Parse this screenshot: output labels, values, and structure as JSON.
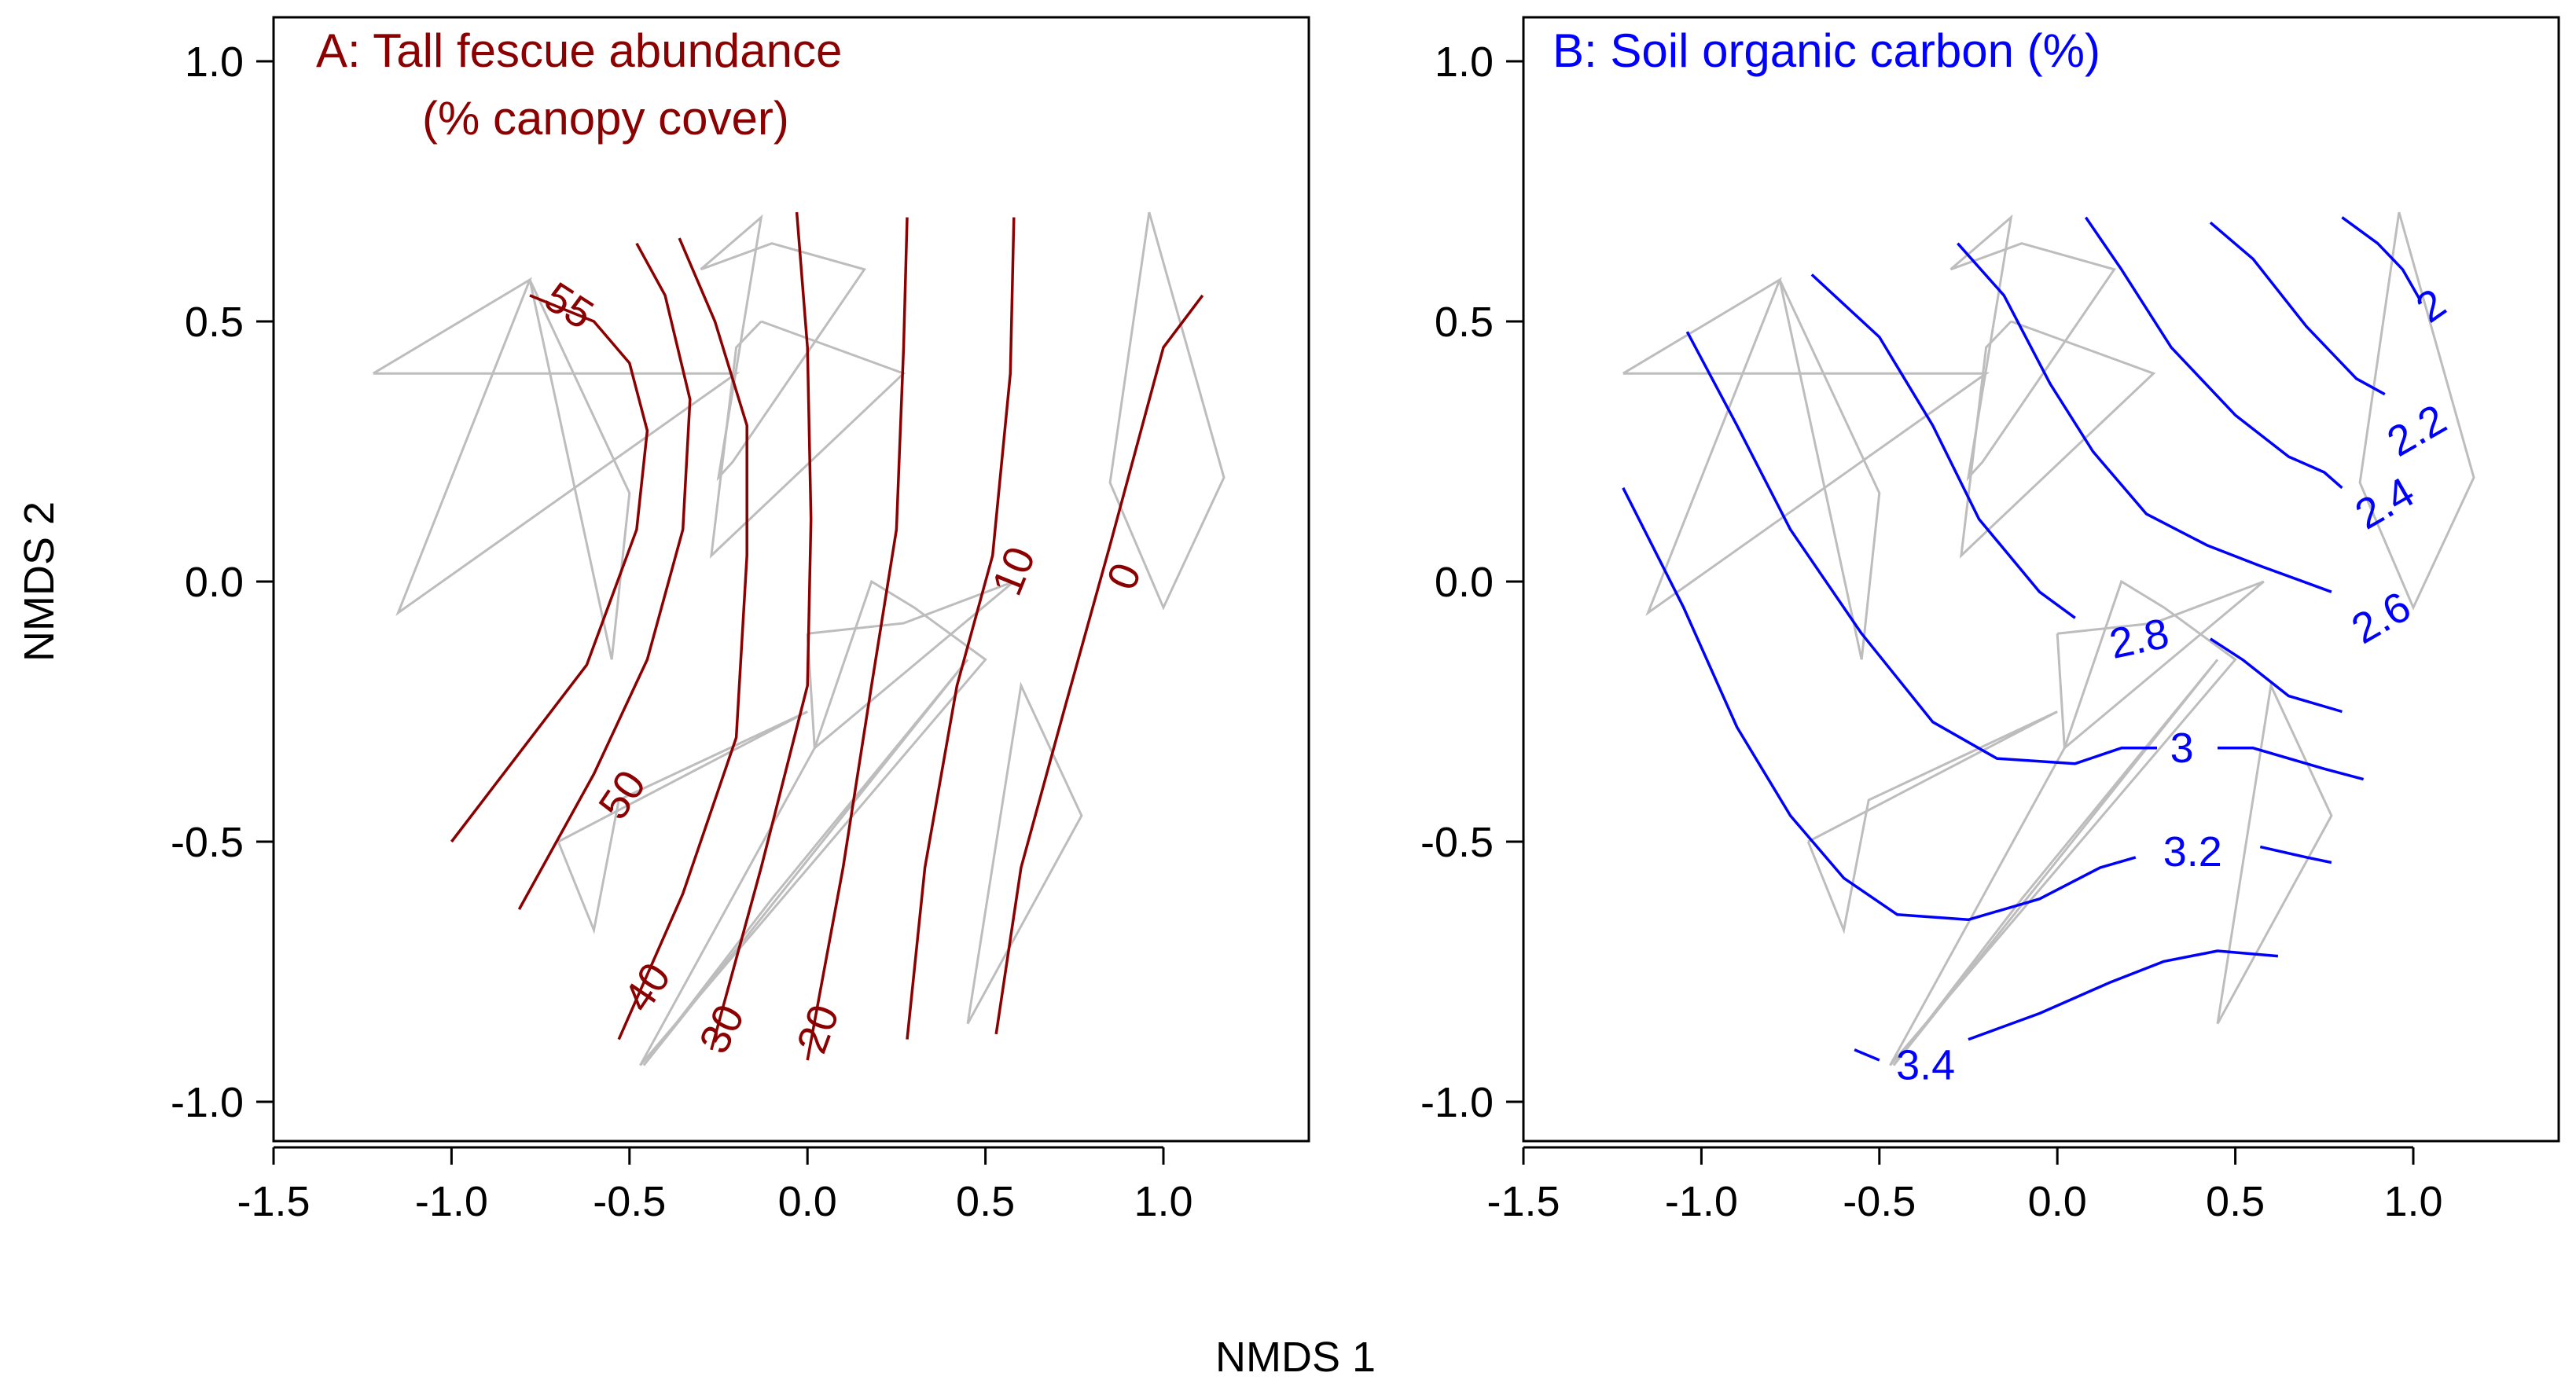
{
  "figure": {
    "shared_xlabel": "NMDS 1",
    "shared_ylabel": "NMDS 2"
  },
  "chart_data": [
    {
      "type": "contour",
      "title_lines": [
        "A: Tall fescue abundance",
        "(% canopy cover)"
      ],
      "title_color": "#8b0000",
      "xlabel": "NMDS 1",
      "ylabel": "NMDS 2",
      "xlim": [
        -1.5,
        1.4
      ],
      "ylim": [
        -1.1,
        1.07
      ],
      "xticks": [
        -1.5,
        -1.0,
        -0.5,
        0.0,
        0.5,
        1.0
      ],
      "xtick_labels": [
        "-1.5",
        "-1.0",
        "-0.5",
        "0.0",
        "0.5",
        "1.0"
      ],
      "yticks": [
        -1.0,
        -0.5,
        0.0,
        0.5,
        1.0
      ],
      "ytick_labels": [
        "-1.0",
        "-0.5",
        "0.0",
        "0.5",
        "1.0"
      ],
      "grid": false,
      "contour_color": "#8b0000",
      "hull_color": "#bdbdbd",
      "hulls": [
        [
          [
            -1.22,
            0.4
          ],
          [
            -0.78,
            0.58
          ],
          [
            -1.15,
            -0.06
          ],
          [
            -0.2,
            0.4
          ],
          [
            -1.22,
            0.4
          ]
        ],
        [
          [
            -0.55,
            -0.15
          ],
          [
            -0.5,
            0.17
          ],
          [
            -0.78,
            0.58
          ],
          [
            -0.55,
            -0.15
          ]
        ],
        [
          [
            -0.3,
            0.6
          ],
          [
            -0.1,
            0.65
          ],
          [
            0.16,
            0.6
          ],
          [
            -0.21,
            0.23
          ],
          [
            -0.25,
            0.2
          ],
          [
            -0.13,
            0.7
          ],
          [
            -0.3,
            0.6
          ]
        ],
        [
          [
            -0.13,
            0.5
          ],
          [
            -0.2,
            0.45
          ],
          [
            -0.27,
            0.05
          ],
          [
            0.27,
            0.4
          ],
          [
            -0.13,
            0.5
          ]
        ],
        [
          [
            0.96,
            0.71
          ],
          [
            0.85,
            0.19
          ],
          [
            1.0,
            -0.05
          ],
          [
            1.17,
            0.2
          ],
          [
            0.96,
            0.71
          ]
        ],
        [
          [
            -0.7,
            -0.5
          ],
          [
            -0.6,
            -0.67
          ],
          [
            -0.53,
            -0.42
          ],
          [
            0.0,
            -0.25
          ],
          [
            -0.7,
            -0.5
          ]
        ],
        [
          [
            -0.47,
            -0.93
          ],
          [
            0.02,
            -0.32
          ],
          [
            0.18,
            0.0
          ],
          [
            0.3,
            -0.05
          ],
          [
            0.5,
            -0.15
          ],
          [
            -0.47,
            -0.93
          ]
        ],
        [
          [
            0.0,
            -0.1
          ],
          [
            0.27,
            -0.08
          ],
          [
            0.58,
            0.0
          ],
          [
            0.02,
            -0.32
          ],
          [
            0.0,
            -0.1
          ]
        ],
        [
          [
            0.45,
            -0.85
          ],
          [
            0.6,
            -0.2
          ],
          [
            0.77,
            -0.45
          ],
          [
            0.45,
            -0.85
          ]
        ],
        [
          [
            -0.46,
            -0.93
          ],
          [
            -0.1,
            -0.61
          ],
          [
            0.45,
            -0.15
          ],
          [
            -0.46,
            -0.93
          ]
        ]
      ],
      "levels": [
        {
          "label": "55",
          "points": [
            [
              -1.0,
              -0.5
            ],
            [
              -0.62,
              -0.16
            ],
            [
              -0.48,
              0.1
            ],
            [
              -0.45,
              0.29
            ],
            [
              -0.5,
              0.42
            ],
            [
              -0.6,
              0.5
            ],
            [
              -0.78,
              0.55
            ]
          ],
          "label_at": [
            -0.67,
            0.53
          ],
          "label_rotation": 33
        },
        {
          "label": "50",
          "points": [
            [
              -0.81,
              -0.63
            ],
            [
              -0.6,
              -0.37
            ],
            [
              -0.45,
              -0.15
            ],
            [
              -0.35,
              0.1
            ],
            [
              -0.33,
              0.35
            ],
            [
              -0.4,
              0.55
            ],
            [
              -0.48,
              0.65
            ]
          ],
          "label_at": [
            -0.52,
            -0.41
          ],
          "label_rotation": -56
        },
        {
          "label": "40",
          "points": [
            [
              -0.53,
              -0.88
            ],
            [
              -0.35,
              -0.6
            ],
            [
              -0.2,
              -0.3
            ],
            [
              -0.17,
              0.05
            ],
            [
              -0.17,
              0.3
            ],
            [
              -0.26,
              0.5
            ],
            [
              -0.36,
              0.66
            ]
          ],
          "label_at": [
            -0.45,
            -0.78
          ],
          "label_rotation": -56
        },
        {
          "label": "30",
          "points": [
            [
              -0.27,
              -0.9
            ],
            [
              -0.13,
              -0.55
            ],
            [
              0.0,
              -0.2
            ],
            [
              0.01,
              0.12
            ],
            [
              0.0,
              0.45
            ],
            [
              -0.03,
              0.71
            ]
          ],
          "label_at": [
            -0.24,
            -0.86
          ],
          "label_rotation": -63
        },
        {
          "label": "20",
          "points": [
            [
              0.0,
              -0.92
            ],
            [
              0.1,
              -0.55
            ],
            [
              0.18,
              -0.2
            ],
            [
              0.25,
              0.1
            ],
            [
              0.27,
              0.45
            ],
            [
              0.28,
              0.7
            ]
          ],
          "label_at": [
            0.03,
            -0.86
          ],
          "label_rotation": -70
        },
        {
          "label": "10",
          "points": [
            [
              0.28,
              -0.88
            ],
            [
              0.33,
              -0.55
            ],
            [
              0.42,
              -0.2
            ],
            [
              0.52,
              0.05
            ],
            [
              0.57,
              0.4
            ],
            [
              0.58,
              0.7
            ]
          ],
          "label_at": [
            0.58,
            0.02
          ],
          "label_rotation": -68
        },
        {
          "label": "0",
          "points": [
            [
              0.53,
              -0.87
            ],
            [
              0.6,
              -0.55
            ],
            [
              0.72,
              -0.25
            ],
            [
              0.85,
              0.07
            ],
            [
              1.0,
              0.45
            ],
            [
              1.11,
              0.55
            ]
          ],
          "label_at": [
            0.89,
            0.01
          ],
          "label_rotation": -68
        }
      ]
    },
    {
      "type": "contour",
      "title_lines": [
        "B: Soil organic carbon (%)"
      ],
      "title_color": "#0000ff",
      "xlabel": "NMDS 1",
      "ylabel": "NMDS 2",
      "xlim": [
        -1.5,
        1.4
      ],
      "ylim": [
        -1.1,
        1.07
      ],
      "xticks": [
        -1.5,
        -1.0,
        -0.5,
        0.0,
        0.5,
        1.0
      ],
      "xtick_labels": [
        "-1.5",
        "-1.0",
        "-0.5",
        "0.0",
        "0.5",
        "1.0"
      ],
      "yticks": [
        -1.0,
        -0.5,
        0.0,
        0.5,
        1.0
      ],
      "ytick_labels": [
        "-1.0",
        "-0.5",
        "0.0",
        "0.5",
        "1.0"
      ],
      "grid": false,
      "contour_color": "#0000ff",
      "hull_color": "#bdbdbd",
      "hulls": [
        [
          [
            -1.22,
            0.4
          ],
          [
            -0.78,
            0.58
          ],
          [
            -1.15,
            -0.06
          ],
          [
            -0.2,
            0.4
          ],
          [
            -1.22,
            0.4
          ]
        ],
        [
          [
            -0.55,
            -0.15
          ],
          [
            -0.5,
            0.17
          ],
          [
            -0.78,
            0.58
          ],
          [
            -0.55,
            -0.15
          ]
        ],
        [
          [
            -0.3,
            0.6
          ],
          [
            -0.1,
            0.65
          ],
          [
            0.16,
            0.6
          ],
          [
            -0.21,
            0.23
          ],
          [
            -0.25,
            0.2
          ],
          [
            -0.13,
            0.7
          ],
          [
            -0.3,
            0.6
          ]
        ],
        [
          [
            -0.13,
            0.5
          ],
          [
            -0.2,
            0.45
          ],
          [
            -0.27,
            0.05
          ],
          [
            0.27,
            0.4
          ],
          [
            -0.13,
            0.5
          ]
        ],
        [
          [
            0.96,
            0.71
          ],
          [
            0.85,
            0.19
          ],
          [
            1.0,
            -0.05
          ],
          [
            1.17,
            0.2
          ],
          [
            0.96,
            0.71
          ]
        ],
        [
          [
            -0.7,
            -0.5
          ],
          [
            -0.6,
            -0.67
          ],
          [
            -0.53,
            -0.42
          ],
          [
            0.0,
            -0.25
          ],
          [
            -0.7,
            -0.5
          ]
        ],
        [
          [
            -0.47,
            -0.93
          ],
          [
            0.02,
            -0.32
          ],
          [
            0.18,
            0.0
          ],
          [
            0.3,
            -0.05
          ],
          [
            0.5,
            -0.15
          ],
          [
            -0.47,
            -0.93
          ]
        ],
        [
          [
            0.0,
            -0.1
          ],
          [
            0.27,
            -0.08
          ],
          [
            0.58,
            0.0
          ],
          [
            0.02,
            -0.32
          ],
          [
            0.0,
            -0.1
          ]
        ],
        [
          [
            0.45,
            -0.85
          ],
          [
            0.6,
            -0.2
          ],
          [
            0.77,
            -0.45
          ],
          [
            0.45,
            -0.85
          ]
        ],
        [
          [
            -0.46,
            -0.93
          ],
          [
            -0.1,
            -0.61
          ],
          [
            0.45,
            -0.15
          ],
          [
            -0.46,
            -0.93
          ]
        ]
      ],
      "levels": [
        {
          "label": "2",
          "points": [
            [
              0.8,
              0.7
            ],
            [
              0.9,
              0.65
            ],
            [
              0.97,
              0.6
            ],
            [
              1.02,
              0.54
            ]
          ],
          "label_at": [
            1.05,
            0.53
          ],
          "label_rotation": -35
        },
        {
          "label": "2.2",
          "points": [
            [
              0.43,
              0.69
            ],
            [
              0.55,
              0.62
            ],
            [
              0.7,
              0.49
            ],
            [
              0.84,
              0.39
            ],
            [
              0.92,
              0.36
            ]
          ],
          "label_at": [
            1.01,
            0.29
          ],
          "label_rotation": -30
        },
        {
          "label": "2.4",
          "points": [
            [
              0.08,
              0.7
            ],
            [
              0.18,
              0.6
            ],
            [
              0.32,
              0.45
            ],
            [
              0.5,
              0.32
            ],
            [
              0.65,
              0.24
            ],
            [
              0.75,
              0.21
            ],
            [
              0.8,
              0.18
            ]
          ],
          "label_at": [
            0.92,
            0.15
          ],
          "label_rotation": -30
        },
        {
          "label": "2.6",
          "points": [
            [
              -0.28,
              0.65
            ],
            [
              -0.15,
              0.55
            ],
            [
              -0.02,
              0.38
            ],
            [
              0.1,
              0.25
            ],
            [
              0.25,
              0.13
            ],
            [
              0.42,
              0.07
            ],
            [
              0.57,
              0.03
            ],
            [
              0.77,
              -0.02
            ]
          ],
          "label_at": [
            0.91,
            -0.07
          ],
          "label_rotation": -30
        },
        {
          "label": "2.8",
          "points": [
            [
              -0.69,
              0.59
            ],
            [
              -0.5,
              0.47
            ],
            [
              -0.35,
              0.3
            ],
            [
              -0.22,
              0.12
            ],
            [
              -0.05,
              -0.02
            ],
            [
              0.05,
              -0.07
            ]
          ],
          "label_at": [
            0.23,
            -0.11
          ],
          "label_rotation": -12
        },
        {
          "label": "2.8",
          "tail": true,
          "points": [
            [
              0.43,
              -0.11
            ],
            [
              0.52,
              -0.15
            ],
            [
              0.65,
              -0.22
            ],
            [
              0.8,
              -0.25
            ]
          ],
          "label_at": null
        },
        {
          "label": "3",
          "points": [
            [
              -1.04,
              0.48
            ],
            [
              -0.9,
              0.3
            ],
            [
              -0.75,
              0.1
            ],
            [
              -0.55,
              -0.1
            ],
            [
              -0.35,
              -0.27
            ],
            [
              -0.17,
              -0.34
            ],
            [
              0.05,
              -0.35
            ],
            [
              0.18,
              -0.32
            ],
            [
              0.28,
              -0.32
            ]
          ],
          "label_at": [
            0.35,
            -0.32
          ],
          "label_rotation": 0
        },
        {
          "label": "3",
          "tail": true,
          "points": [
            [
              0.45,
              -0.32
            ],
            [
              0.55,
              -0.32
            ],
            [
              0.75,
              -0.36
            ],
            [
              0.86,
              -0.38
            ]
          ],
          "label_at": null
        },
        {
          "label": "3.2",
          "points": [
            [
              -1.22,
              0.18
            ],
            [
              -1.05,
              -0.05
            ],
            [
              -0.9,
              -0.28
            ],
            [
              -0.75,
              -0.45
            ],
            [
              -0.6,
              -0.57
            ],
            [
              -0.45,
              -0.64
            ],
            [
              -0.25,
              -0.65
            ],
            [
              -0.05,
              -0.61
            ],
            [
              0.12,
              -0.55
            ],
            [
              0.22,
              -0.53
            ]
          ],
          "label_at": [
            0.38,
            -0.52
          ],
          "label_rotation": 0
        },
        {
          "label": "3.2",
          "tail": true,
          "points": [
            [
              0.57,
              -0.51
            ],
            [
              0.7,
              -0.53
            ],
            [
              0.77,
              -0.54
            ]
          ],
          "label_at": null
        },
        {
          "label": "3.4",
          "points": [
            [
              -0.57,
              -0.9
            ],
            [
              -0.5,
              -0.92
            ]
          ],
          "label_at": [
            -0.37,
            -0.93
          ],
          "label_rotation": 0
        },
        {
          "label": "3.4",
          "tail": true,
          "points": [
            [
              -0.25,
              -0.88
            ],
            [
              -0.05,
              -0.83
            ],
            [
              0.15,
              -0.77
            ],
            [
              0.3,
              -0.73
            ],
            [
              0.45,
              -0.71
            ],
            [
              0.62,
              -0.72
            ]
          ],
          "label_at": null
        }
      ]
    }
  ]
}
